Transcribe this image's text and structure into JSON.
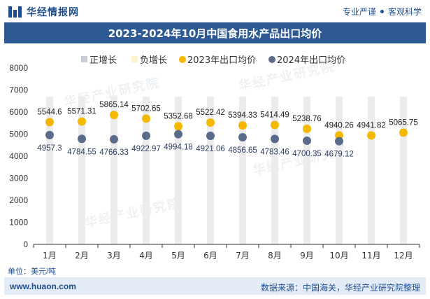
{
  "header": {
    "brand": "华经情报网",
    "tag1": "专业严谨",
    "tag2": "客观科学"
  },
  "title": "2023-2024年10月中国食用水产品出口均价",
  "unit_label": "单位：美元/吨",
  "footer": {
    "site": "www.huaon.com",
    "source": "数据来源：中国海关，华经产业研究院整理"
  },
  "watermark": "华经产业研究院",
  "colors": {
    "s2023": "#f5b800",
    "s2024": "#5a6b8c",
    "bar": "#ececec",
    "barDashed": "#fdf3cf",
    "title_bg": "#2d5a93"
  },
  "chart_data": {
    "type": "scatter",
    "categories": [
      "1月",
      "2月",
      "3月",
      "4月",
      "5月",
      "6月",
      "7月",
      "8月",
      "9月",
      "10月",
      "11月",
      "12月"
    ],
    "ylim": [
      0,
      8000
    ],
    "yticks": [
      0,
      1000,
      2000,
      3000,
      4000,
      5000,
      6000,
      7000,
      8000
    ],
    "legend": [
      "正增长",
      "负增长",
      "2023年出口均价",
      "2024年出口均价"
    ],
    "legend_position": "top-center",
    "series": [
      {
        "name": "2023年出口均价",
        "values": [
          5544.6,
          5571.31,
          5865.14,
          5702.65,
          5352.68,
          5522.42,
          5394.33,
          5414.49,
          5238.76,
          4940.26,
          4941.82,
          5065.75
        ],
        "labels": [
          "5544.6",
          "5571.31",
          "5865.14",
          "5702.65",
          "5352.68",
          "5522.42",
          "5394.33",
          "5414.49",
          "5238.76",
          "4940.26",
          "4941.82",
          "5065.75"
        ]
      },
      {
        "name": "2024年出口均价",
        "values": [
          4957.3,
          4784.55,
          4766.33,
          4922.97,
          4994.18,
          4921.06,
          4856.65,
          4783.46,
          4700.35,
          4679.12
        ],
        "labels": [
          "4957.3",
          "4784.55",
          "4766.33",
          "4922.97",
          "4994.18",
          "4921.06",
          "4856.65",
          "4783.46",
          "4700.35",
          "4679.12"
        ]
      }
    ],
    "background_bar_value": 6700
  }
}
